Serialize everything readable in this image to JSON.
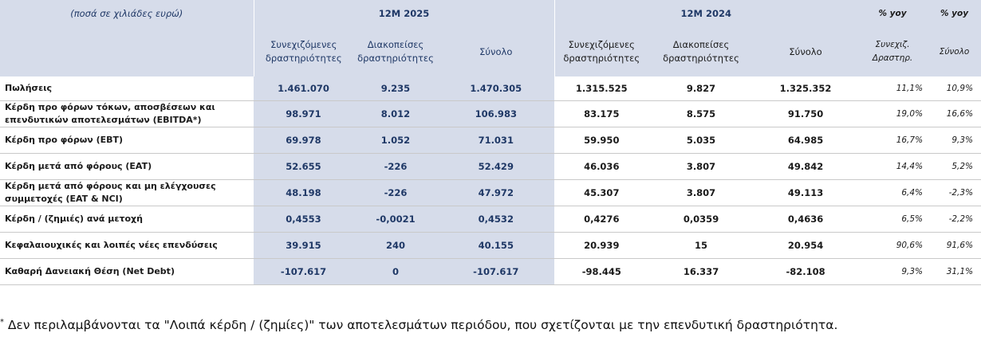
{
  "header": {
    "units": "(ποσά σε χιλιάδες ευρώ)",
    "period_2025": "12M 2025",
    "period_2024": "12M 2024",
    "yoy_1": "% yoy",
    "yoy_2": "% yoy",
    "sub_cont_2025": "Συνεχιζόμενες δραστηριότητες",
    "sub_disc_2025": "Διακοπείσες δραστηριότητες",
    "sub_total_2025": "Σύνολο",
    "sub_cont_2024": "Συνεχιζόμενες δραστηριότητες",
    "sub_disc_2024": "Διακοπείσες δραστηριότητες",
    "sub_total_2024": "Σύνολο",
    "sub_yoy_1": "Συνεχιζ. Δραστηρ.",
    "sub_yoy_2": "Σύνολο"
  },
  "rows": [
    {
      "label": "Πωλήσεις",
      "c25": "1.461.070",
      "d25": "9.235",
      "t25": "1.470.305",
      "c24": "1.315.525",
      "d24": "9.827",
      "t24": "1.325.352",
      "y1": "11,1%",
      "y2": "10,9%"
    },
    {
      "label": "Κέρδη προ φόρων τόκων, αποσβέσεων και επενδυτικών αποτελεσμάτων (EBITDA*)",
      "c25": "98.971",
      "d25": "8.012",
      "t25": "106.983",
      "c24": "83.175",
      "d24": "8.575",
      "t24": "91.750",
      "y1": "19,0%",
      "y2": "16,6%"
    },
    {
      "label": "Κέρδη προ φόρων (EBT)",
      "c25": "69.978",
      "d25": "1.052",
      "t25": "71.031",
      "c24": "59.950",
      "d24": "5.035",
      "t24": "64.985",
      "y1": "16,7%",
      "y2": "9,3%"
    },
    {
      "label": "Κέρδη μετά από φόρους (EAT)",
      "c25": "52.655",
      "d25": "-226",
      "t25": "52.429",
      "c24": "46.036",
      "d24": "3.807",
      "t24": "49.842",
      "y1": "14,4%",
      "y2": "5,2%"
    },
    {
      "label": "Κέρδη μετά από φόρους και μη ελέγχουσες συμμετοχές (EAT & NCI)",
      "c25": "48.198",
      "d25": "-226",
      "t25": "47.972",
      "c24": "45.307",
      "d24": "3.807",
      "t24": "49.113",
      "y1": "6,4%",
      "y2": "-2,3%"
    },
    {
      "label": "Κέρδη / (ζημιές) ανά μετοχή",
      "c25": "0,4553",
      "d25": "-0,0021",
      "t25": "0,4532",
      "c24": "0,4276",
      "d24": "0,0359",
      "t24": "0,4636",
      "y1": "6,5%",
      "y2": "-2,2%"
    },
    {
      "label": "Κεφαλαιουχικές και λοιπές νέες επενδύσεις",
      "c25": "39.915",
      "d25": "240",
      "t25": "40.155",
      "c24": "20.939",
      "d24": "15",
      "t24": "20.954",
      "y1": "90,6%",
      "y2": "91,6%"
    },
    {
      "label": "Καθαρή Δανειακή Θέση (Net Debt)",
      "c25": "-107.617",
      "d25": "0",
      "t25": "-107.617",
      "c24": "-98.445",
      "d24": "16.337",
      "t24": "-82.108",
      "y1": "9,3%",
      "y2": "31,1%"
    }
  ],
  "footnote": {
    "mark": "*",
    "text": " Δεν περιλαμβάνονται τα \"Λοιπά κέρδη / (ζημίες)\" των αποτελεσμάτων περιόδου, που σχετίζονται με την επενδυτική δραστηριότητα."
  },
  "colors": {
    "header_fill": "#d6dcea",
    "header_text": "#1f3866",
    "row_divider": "#c9c9c9"
  }
}
